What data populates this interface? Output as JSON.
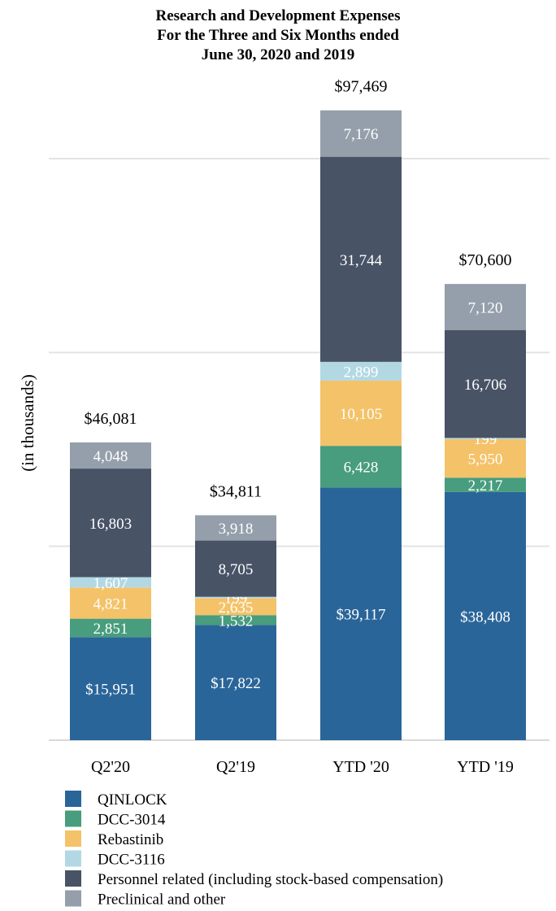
{
  "chart_data": {
    "type": "bar",
    "stacked": true,
    "title": [
      "Research and Development Expenses",
      "For the Three and Six Months ended",
      "June 30, 2020 and 2019"
    ],
    "ylabel": "(in thousands)",
    "xlabel": "",
    "ylim": [
      0,
      100000
    ],
    "grid": true,
    "legend_position": "bottom",
    "categories": [
      "Q2'20",
      "Q2'19",
      "YTD '20",
      "YTD '19"
    ],
    "totals": [
      "$46,081",
      "$34,811",
      "$97,469",
      "$70,600"
    ],
    "series": [
      {
        "name": "QINLOCK",
        "color": "#2a6599",
        "values": [
          15951,
          17822,
          39117,
          38408
        ],
        "labels": [
          "$15,951",
          "$17,822",
          "$39,117",
          "$38,408"
        ]
      },
      {
        "name": "DCC-3014",
        "color": "#479d7d",
        "values": [
          2851,
          1532,
          6428,
          2217
        ],
        "labels": [
          "2,851",
          "1,532",
          "6,428",
          "2,217"
        ]
      },
      {
        "name": "Rebastinib",
        "color": "#f4c268",
        "values": [
          4821,
          2635,
          10105,
          5950
        ],
        "labels": [
          "4,821",
          "2,635",
          "10,105",
          "5,950"
        ]
      },
      {
        "name": "DCC-3116",
        "color": "#b2d8e4",
        "values": [
          1607,
          199,
          2899,
          199
        ],
        "labels": [
          "1,607",
          "199",
          "2,899",
          "199"
        ]
      },
      {
        "name": "Personnel related (including stock-based compensation)",
        "color": "#485366",
        "values": [
          16803,
          8705,
          31744,
          16706
        ],
        "labels": [
          "16,803",
          "8,705",
          "31,744",
          "16,706"
        ]
      },
      {
        "name": "Preclinical and other",
        "color": "#949fab",
        "values": [
          4048,
          3918,
          7176,
          7120
        ],
        "labels": [
          "4,048",
          "3,918",
          "7,176",
          "7,120"
        ]
      }
    ]
  }
}
